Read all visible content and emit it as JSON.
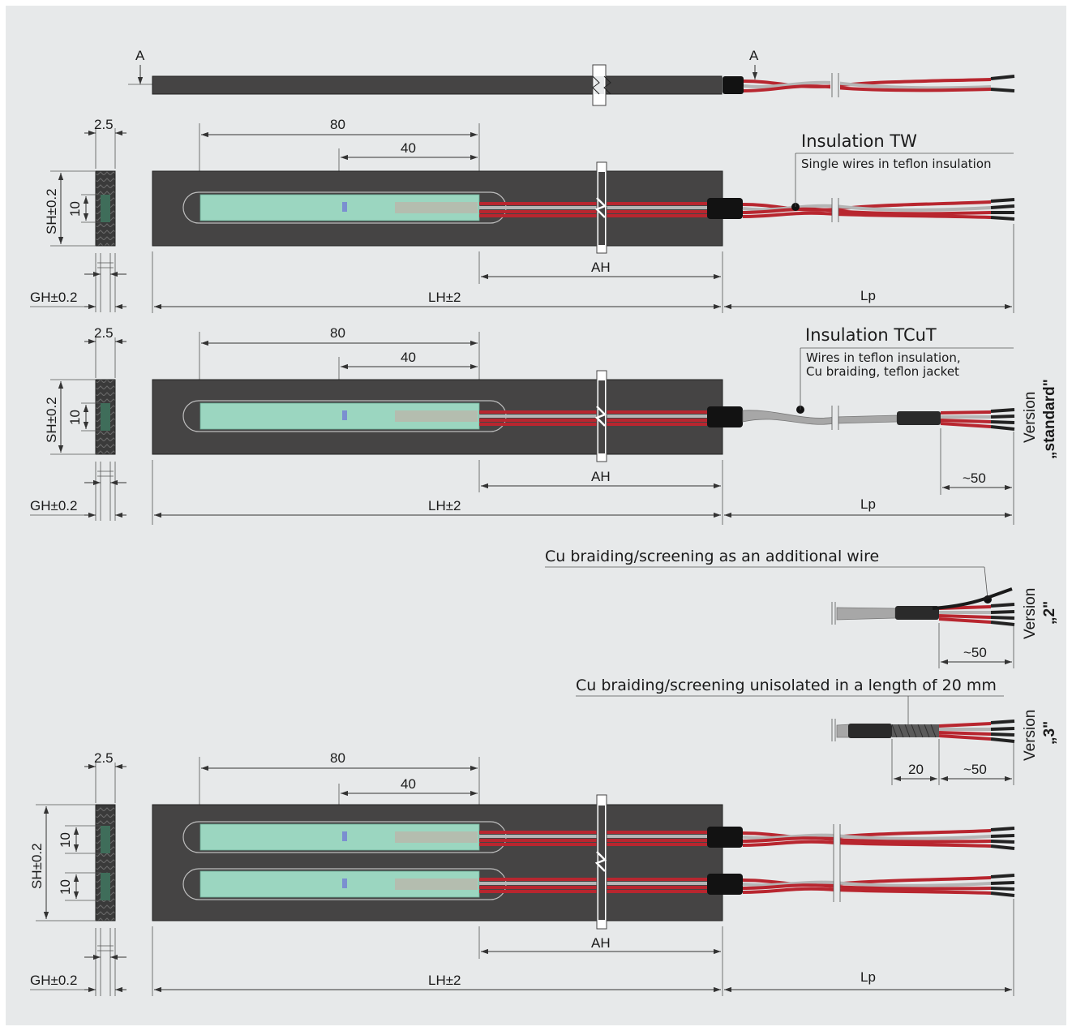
{
  "labels": {
    "section_marker": "A",
    "thickness": "2.5",
    "length_80": "80",
    "length_40": "40",
    "height": "SH±0.2",
    "window": "10",
    "gap": "GH±0.2",
    "pad_length": "LH±2",
    "active_length": "AH",
    "lead_length": "Lp",
    "strip_50": "~50",
    "unisolated_20": "20"
  },
  "insulation_tw": {
    "title": "Insulation TW",
    "subtitle": "Single wires in teflon insulation"
  },
  "insulation_tcut": {
    "title": "Insulation TCuT",
    "subtitle_line1": "Wires in teflon insulation,",
    "subtitle_line2": "Cu braiding, teflon jacket"
  },
  "version_standard": {
    "word": "Version",
    "name": "„standard\""
  },
  "version_2": {
    "note": "Cu braiding/screening as an additional wire",
    "word": "Version",
    "name": "„2\""
  },
  "version_3": {
    "note": "Cu braiding/screening unisolated in a length of 20 mm",
    "word": "Version",
    "name": "„3\""
  },
  "colors": {
    "background": "#e7e9ea",
    "pad": "#454444",
    "sensor": "#9bd6c0",
    "wire_red": "#b8262f",
    "wire_grey": "#b5b5b5",
    "wire_black": "#222222"
  }
}
